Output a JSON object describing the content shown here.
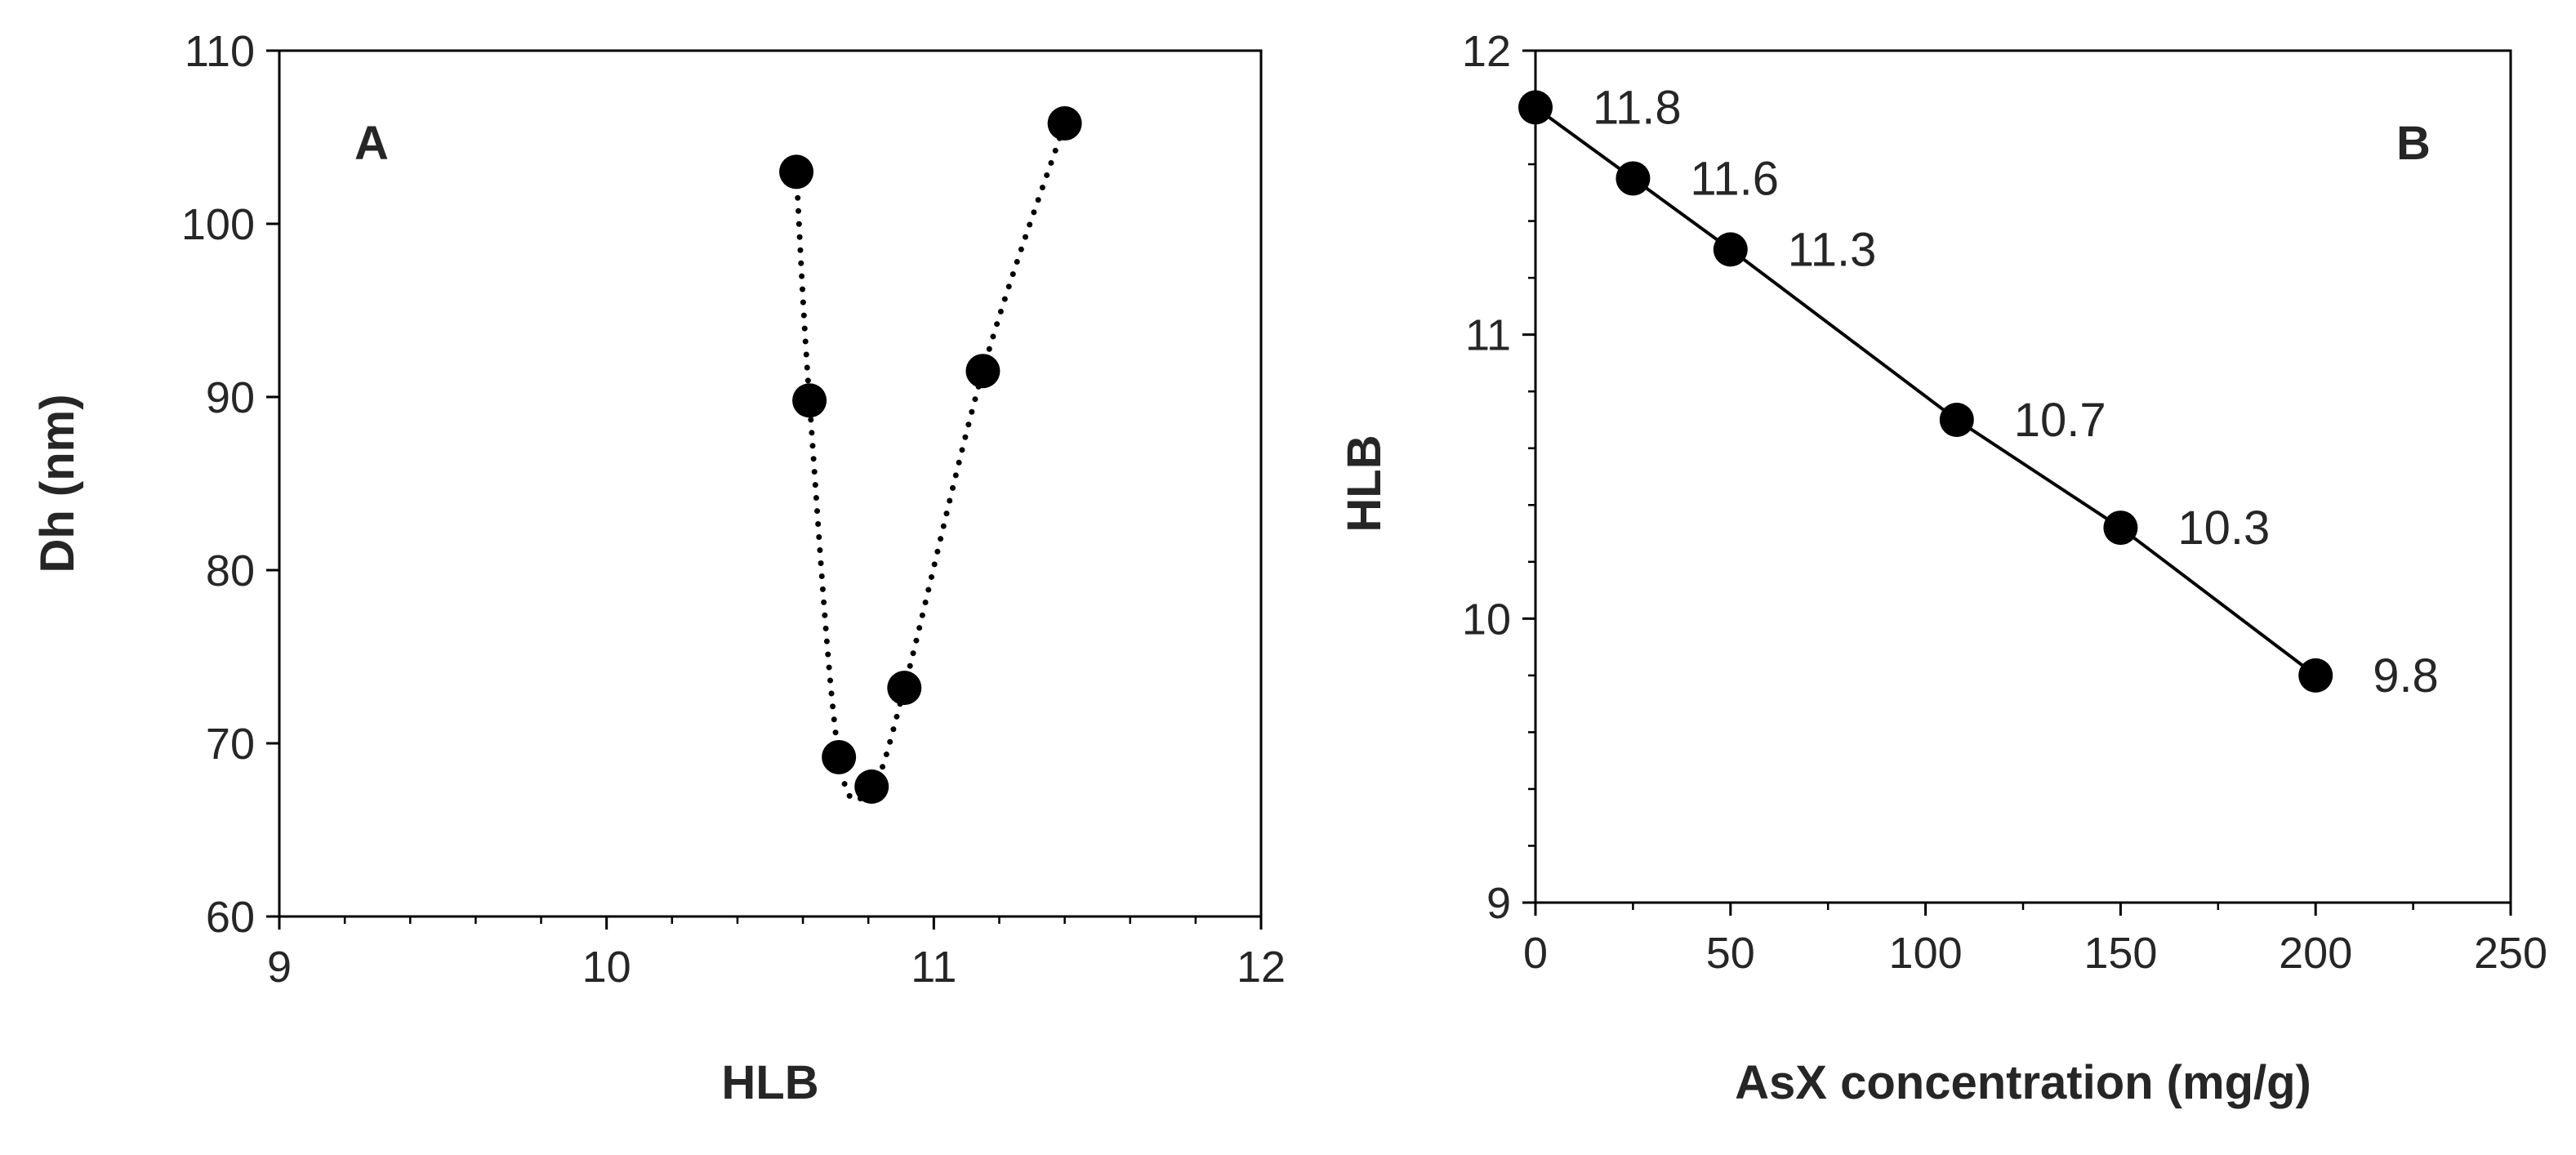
{
  "chart_data": [
    {
      "type": "scatter",
      "panel_label": "A",
      "xlabel": "HLB",
      "ylabel": "Dh (nm)",
      "xlim": [
        9,
        12
      ],
      "ylim": [
        60,
        110
      ],
      "x_ticks": [
        "9",
        "10",
        "11",
        "12"
      ],
      "y_ticks": [
        "60",
        "70",
        "80",
        "90",
        "100",
        "110"
      ],
      "trendline": "dotted smooth curve",
      "series": [
        {
          "points": [
            {
              "x": 10.58,
              "y": 103.0
            },
            {
              "x": 10.62,
              "y": 89.8
            },
            {
              "x": 10.71,
              "y": 69.2
            },
            {
              "x": 10.81,
              "y": 67.5
            },
            {
              "x": 10.91,
              "y": 73.2
            },
            {
              "x": 11.15,
              "y": 91.5
            },
            {
              "x": 11.4,
              "y": 105.8
            }
          ]
        }
      ],
      "colors": {
        "marker": "#000000",
        "axis": "#000000"
      }
    },
    {
      "type": "line",
      "panel_label": "B",
      "xlabel": "AsX concentration (mg/g)",
      "ylabel": "HLB",
      "xlim": [
        0,
        250
      ],
      "ylim": [
        9,
        12
      ],
      "x_ticks": [
        "0",
        "50",
        "100",
        "150",
        "200",
        "250"
      ],
      "y_ticks": [
        "9",
        "10",
        "11",
        "12"
      ],
      "series": [
        {
          "points": [
            {
              "x": 0,
              "y": 11.8,
              "label": "11.8"
            },
            {
              "x": 25,
              "y": 11.55,
              "label": "11.6"
            },
            {
              "x": 50,
              "y": 11.3,
              "label": "11.3"
            },
            {
              "x": 108,
              "y": 10.7,
              "label": "10.7"
            },
            {
              "x": 150,
              "y": 10.32,
              "label": "10.3"
            },
            {
              "x": 200,
              "y": 9.8,
              "label": "9.8"
            }
          ]
        }
      ],
      "colors": {
        "marker": "#000000",
        "line": "#000000",
        "axis": "#000000"
      }
    }
  ]
}
